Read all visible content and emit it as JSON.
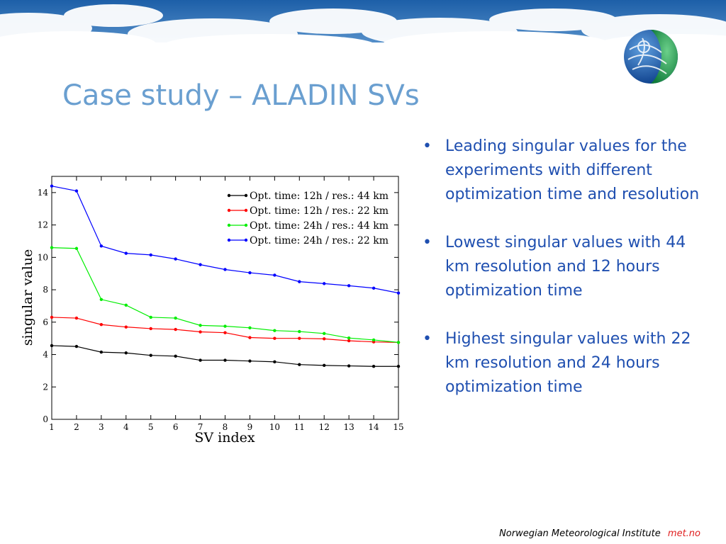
{
  "slide": {
    "title": "Case study – ALADIN SVs",
    "bullets": [
      "Leading singular values for the experiments with different optimization time and resolution",
      "Lowest singular values with 44 km resolution and 12 hours optimization time",
      "Highest singular values with 22 km resolution and 24 hours optimization time"
    ],
    "footer_org": "Norwegian Meteorological Institute",
    "footer_brand": "met.no",
    "logo_icon": "met-no-globe-logo-icon",
    "colors": {
      "title": "#6a9fd0",
      "bullet_text": "#1f4fb0",
      "brand": "#e02020"
    }
  },
  "chart_data": {
    "type": "line",
    "x": [
      1,
      2,
      3,
      4,
      5,
      6,
      7,
      8,
      9,
      10,
      11,
      12,
      13,
      14,
      15
    ],
    "xlabel": "SV index",
    "ylabel": "singular value",
    "xlim": [
      1,
      15
    ],
    "ylim": [
      0,
      15
    ],
    "xticks": [
      1,
      2,
      3,
      4,
      5,
      6,
      7,
      8,
      9,
      10,
      11,
      12,
      13,
      14,
      15
    ],
    "yticks": [
      0,
      2,
      4,
      6,
      8,
      10,
      12,
      14
    ],
    "grid": false,
    "legend_position": "top-right",
    "series": [
      {
        "name": "Opt. time: 12h / res.: 44 km",
        "color": "#000000",
        "values": [
          4.55,
          4.5,
          4.15,
          4.1,
          3.95,
          3.9,
          3.65,
          3.65,
          3.6,
          3.55,
          3.38,
          3.33,
          3.3,
          3.27,
          3.27
        ]
      },
      {
        "name": "Opt. time: 12h / res.: 22 km",
        "color": "#ff0000",
        "values": [
          6.3,
          6.25,
          5.85,
          5.7,
          5.6,
          5.55,
          5.4,
          5.35,
          5.05,
          5.0,
          5.0,
          4.97,
          4.85,
          4.78,
          4.75
        ]
      },
      {
        "name": "Opt. time: 24h / res.: 44 km",
        "color": "#00ee00",
        "values": [
          10.6,
          10.55,
          7.4,
          7.05,
          6.3,
          6.25,
          5.8,
          5.75,
          5.65,
          5.48,
          5.42,
          5.3,
          5.02,
          4.9,
          4.75
        ]
      },
      {
        "name": "Opt. time: 24h / res.: 22 km",
        "color": "#0000ff",
        "values": [
          14.4,
          14.1,
          10.7,
          10.25,
          10.15,
          9.9,
          9.55,
          9.25,
          9.05,
          8.9,
          8.5,
          8.38,
          8.25,
          8.1,
          7.8
        ]
      }
    ]
  }
}
